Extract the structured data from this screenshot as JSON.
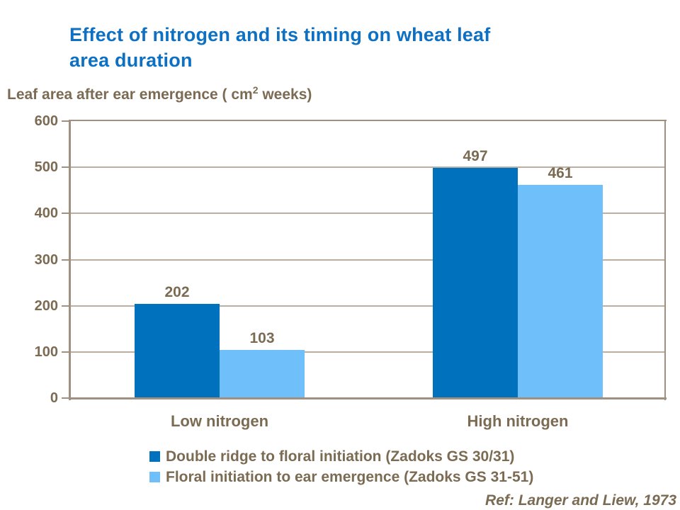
{
  "slide": {
    "title_line1": "Effect of nitrogen and its timing on wheat leaf",
    "title_line2": "area duration",
    "reference": "Ref: Langer and Liew, 1973"
  },
  "chart_data": {
    "type": "bar",
    "title": "Effect of nitrogen and its timing on wheat leaf area duration",
    "axis_title": {
      "prefix": "Leaf area after ear emergence ( cm",
      "superscript": "2",
      "suffix": " weeks)"
    },
    "categories": [
      "Low nitrogen",
      "High nitrogen"
    ],
    "series": [
      {
        "name": "Double ridge to floral initiation (Zadoks GS 30/31)",
        "color": "#0071bc",
        "values": [
          202,
          497
        ]
      },
      {
        "name": "Floral initiation to ear emergence (Zadoks GS 31-51)",
        "color": "#6fbffb",
        "values": [
          103,
          461
        ]
      }
    ],
    "ylim": [
      0,
      600
    ],
    "ytick_step": 100,
    "yticks": [
      600,
      500,
      400,
      300,
      200,
      100,
      0
    ],
    "grid": true,
    "value_labels": true,
    "legend_position": "bottom-left"
  },
  "colors": {
    "title_blue": "#0d70c2",
    "text_brown": "#7c6b53",
    "grid_line": "#bcafa0",
    "frame_line": "#a09080",
    "background": "#ffffff"
  }
}
